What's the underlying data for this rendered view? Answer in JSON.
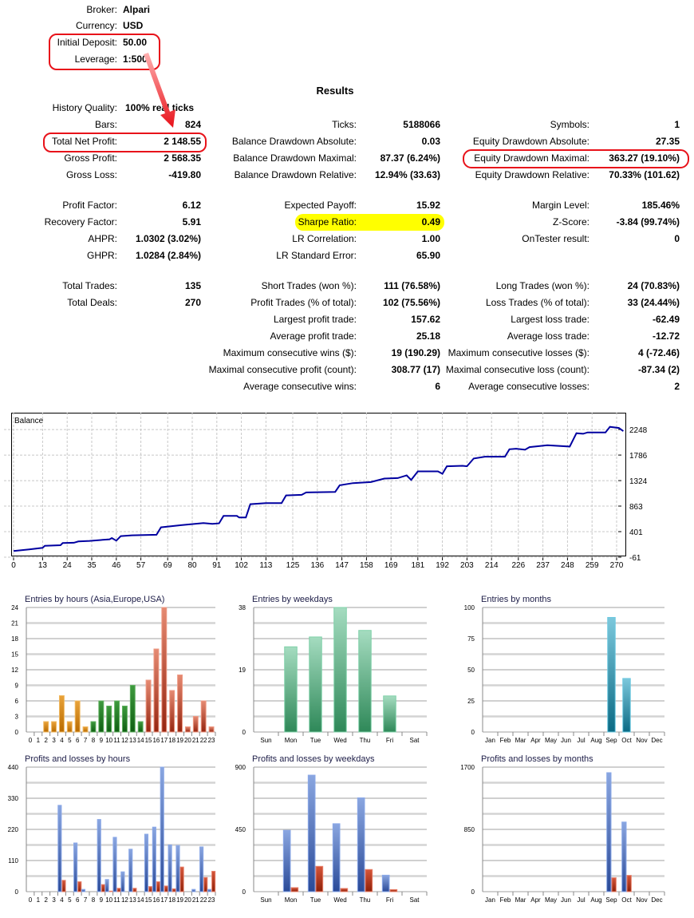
{
  "header_info": [
    {
      "label": "Broker:",
      "value": "Alpari"
    },
    {
      "label": "Currency:",
      "value": "USD"
    },
    {
      "label": "Initial Deposit:",
      "value": "50.00"
    },
    {
      "label": "Leverage:",
      "value": "1:500"
    }
  ],
  "results_title": "Results",
  "blocks": [
    {
      "columns": [
        [
          {
            "label": "History Quality:",
            "value": "100% real ticks"
          },
          {
            "label": "Bars:",
            "value": "824"
          },
          {
            "label": "Total Net Profit:",
            "value": "2 148.55"
          },
          {
            "label": "Gross Profit:",
            "value": "2 568.35"
          },
          {
            "label": "Gross Loss:",
            "value": "-419.80"
          }
        ],
        [
          null,
          {
            "label": "Ticks:",
            "value": "5188066"
          },
          {
            "label": "Balance Drawdown Absolute:",
            "value": "0.03"
          },
          {
            "label": "Balance Drawdown Maximal:",
            "value": "87.37 (6.24%)"
          },
          {
            "label": "Balance Drawdown Relative:",
            "value": "12.94% (33.63)"
          }
        ],
        [
          null,
          {
            "label": "Symbols:",
            "value": "1"
          },
          {
            "label": "Equity Drawdown Absolute:",
            "value": "27.35"
          },
          {
            "label": "Equity Drawdown Maximal:",
            "value": "363.27 (19.10%)"
          },
          {
            "label": "Equity Drawdown Relative:",
            "value": "70.33% (101.62)"
          }
        ]
      ]
    },
    {
      "columns": [
        [
          {
            "label": "Profit Factor:",
            "value": "6.12"
          },
          {
            "label": "Recovery Factor:",
            "value": "5.91"
          },
          {
            "label": "AHPR:",
            "value": "1.0302 (3.02%)"
          },
          {
            "label": "GHPR:",
            "value": "1.0284 (2.84%)"
          }
        ],
        [
          {
            "label": "Expected Payoff:",
            "value": "15.92"
          },
          {
            "label": "Sharpe Ratio:",
            "value": "0.49"
          },
          {
            "label": "LR Correlation:",
            "value": "1.00"
          },
          {
            "label": "LR Standard Error:",
            "value": "65.90"
          }
        ],
        [
          {
            "label": "Margin Level:",
            "value": "185.46%"
          },
          {
            "label": "Z-Score:",
            "value": "-3.84 (99.74%)"
          },
          {
            "label": "OnTester result:",
            "value": "0"
          }
        ]
      ]
    },
    {
      "columns": [
        [
          {
            "label": "Total Trades:",
            "value": "135"
          },
          {
            "label": "Total Deals:",
            "value": "270"
          }
        ],
        [
          {
            "label": "Short Trades (won %):",
            "value": "111 (76.58%)"
          },
          {
            "label": "Profit Trades (% of total):",
            "value": "102 (75.56%)"
          },
          {
            "label": "Largest profit trade:",
            "value": "157.62"
          },
          {
            "label": "Average profit trade:",
            "value": "25.18"
          },
          {
            "label": "Maximum consecutive wins ($):",
            "value": "19 (190.29)"
          },
          {
            "label": "Maximal consecutive profit (count):",
            "value": "308.77 (17)"
          },
          {
            "label": "Average consecutive wins:",
            "value": "6"
          }
        ],
        [
          {
            "label": "Long Trades (won %):",
            "value": "24 (70.83%)"
          },
          {
            "label": "Loss Trades (% of total):",
            "value": "33 (24.44%)"
          },
          {
            "label": "Largest loss trade:",
            "value": "-62.49"
          },
          {
            "label": "Average loss trade:",
            "value": "-12.72"
          },
          {
            "label": "Maximum consecutive losses ($):",
            "value": "4 (-72.46)"
          },
          {
            "label": "Maximal consecutive loss (count):",
            "value": "-87.34 (2)"
          },
          {
            "label": "Average consecutive losses:",
            "value": "2"
          }
        ]
      ]
    }
  ],
  "colors": {
    "annotation_red": "#e8121a",
    "highlight_yellow": "#ffff00",
    "balance_line": "#0000a0",
    "profit_blue": "#4a6fc0",
    "loss_red": "#b8351c"
  },
  "chart_data": [
    {
      "type": "line",
      "title": "Balance",
      "y_ticks": [
        2248,
        1786,
        1324,
        863,
        401,
        -61
      ],
      "x_ticks": [
        0,
        13,
        24,
        35,
        46,
        57,
        69,
        80,
        91,
        102,
        113,
        125,
        136,
        147,
        158,
        169,
        181,
        192,
        203,
        214,
        226,
        237,
        248,
        259,
        270
      ],
      "ylim": [
        -61,
        2550
      ],
      "xlim": [
        0,
        275
      ],
      "grid": true,
      "x": [
        0,
        7,
        13,
        14,
        21,
        22,
        27,
        29,
        34,
        43,
        44,
        46,
        48,
        53,
        64,
        66,
        75,
        85,
        89,
        92,
        94,
        100,
        101,
        104,
        106,
        113,
        120,
        122,
        129,
        131,
        144,
        146,
        152,
        160,
        166,
        172,
        176,
        178,
        181,
        190,
        192,
        194,
        201,
        203,
        206,
        211,
        220,
        222,
        225,
        229,
        231,
        239,
        249,
        252,
        255,
        257,
        265,
        267,
        271,
        273
      ],
      "y": [
        50,
        79,
        108,
        146,
        156,
        195,
        200,
        224,
        233,
        262,
        286,
        238,
        320,
        334,
        344,
        479,
        518,
        556,
        542,
        551,
        686,
        686,
        657,
        657,
        898,
        917,
        917,
        1057,
        1067,
        1110,
        1120,
        1240,
        1279,
        1298,
        1361,
        1370,
        1419,
        1337,
        1491,
        1491,
        1448,
        1583,
        1592,
        1583,
        1723,
        1756,
        1756,
        1891,
        1901,
        1882,
        1930,
        1964,
        1940,
        2181,
        2171,
        2195,
        2195,
        2296,
        2277,
        2219
      ]
    },
    {
      "type": "bar",
      "title": "Entries by hours (Asia,Europe,USA)",
      "categories": [
        "0",
        "1",
        "2",
        "3",
        "4",
        "5",
        "6",
        "7",
        "8",
        "9",
        "10",
        "11",
        "12",
        "13",
        "14",
        "15",
        "16",
        "17",
        "18",
        "19",
        "20",
        "21",
        "22",
        "23"
      ],
      "values": [
        0,
        0,
        2,
        2,
        7,
        2,
        6,
        1,
        2,
        6,
        5,
        6,
        5,
        9,
        2,
        10,
        16,
        24,
        8,
        11,
        1,
        3,
        6,
        1
      ],
      "y_ticks": [
        0,
        3,
        6,
        9,
        12,
        15,
        18,
        21,
        24
      ],
      "ylim": [
        0,
        24
      ]
    },
    {
      "type": "bar",
      "title": "Entries by weekdays",
      "categories": [
        "Sun",
        "Mon",
        "Tue",
        "Wed",
        "Thu",
        "Fri",
        "Sat"
      ],
      "values": [
        0,
        26,
        29,
        38,
        31,
        11,
        0
      ],
      "y_ticks": [
        0,
        19,
        38
      ],
      "ylim": [
        0,
        38
      ]
    },
    {
      "type": "bar",
      "title": "Entries by months",
      "categories": [
        "Jan",
        "Feb",
        "Mar",
        "Apr",
        "May",
        "Jun",
        "Jul",
        "Aug",
        "Sep",
        "Oct",
        "Nov",
        "Dec"
      ],
      "values": [
        0,
        0,
        0,
        0,
        0,
        0,
        0,
        0,
        92,
        43,
        0,
        0
      ],
      "y_ticks": [
        0,
        25,
        50,
        75,
        100
      ],
      "ylim": [
        0,
        100
      ]
    },
    {
      "type": "bar",
      "title": "Profits and losses by hours",
      "categories": [
        "0",
        "1",
        "2",
        "3",
        "4",
        "5",
        "6",
        "7",
        "8",
        "9",
        "10",
        "11",
        "12",
        "13",
        "14",
        "15",
        "16",
        "17",
        "18",
        "19",
        "20",
        "21",
        "22",
        "23"
      ],
      "series": [
        {
          "name": "Profits",
          "values": [
            0,
            0,
            0,
            0,
            305,
            0,
            172,
            8,
            0,
            255,
            43,
            192,
            70,
            150,
            0,
            203,
            228,
            440,
            165,
            163,
            0,
            8,
            158,
            8
          ]
        },
        {
          "name": "Losses",
          "values": [
            0,
            0,
            0,
            0,
            40,
            0,
            35,
            0,
            0,
            25,
            2,
            12,
            0,
            12,
            0,
            18,
            35,
            20,
            10,
            87,
            0,
            0,
            50,
            72
          ]
        }
      ],
      "y_ticks": [
        0,
        110,
        220,
        330,
        440
      ],
      "ylim": [
        0,
        440
      ]
    },
    {
      "type": "bar",
      "title": "Profits and losses by weekdays",
      "categories": [
        "Sun",
        "Mon",
        "Tue",
        "Wed",
        "Thu",
        "Fri",
        "Sat"
      ],
      "series": [
        {
          "name": "Profits",
          "values": [
            0,
            443,
            842,
            491,
            678,
            119,
            0
          ]
        },
        {
          "name": "Losses",
          "values": [
            0,
            29,
            183,
            23,
            160,
            15,
            0
          ]
        }
      ],
      "y_ticks": [
        0,
        450,
        900
      ],
      "ylim": [
        0,
        900
      ]
    },
    {
      "type": "bar",
      "title": "Profits and losses by months",
      "categories": [
        "Jan",
        "Feb",
        "Mar",
        "Apr",
        "May",
        "Jun",
        "Jul",
        "Aug",
        "Sep",
        "Oct",
        "Nov",
        "Dec"
      ],
      "series": [
        {
          "name": "Profits",
          "values": [
            0,
            0,
            0,
            0,
            0,
            0,
            0,
            0,
            1624,
            950,
            0,
            0
          ]
        },
        {
          "name": "Losses",
          "values": [
            0,
            0,
            0,
            0,
            0,
            0,
            0,
            0,
            189,
            222,
            0,
            0
          ]
        }
      ],
      "y_ticks": [
        0,
        850,
        1700
      ],
      "ylim": [
        0,
        1700
      ]
    }
  ]
}
